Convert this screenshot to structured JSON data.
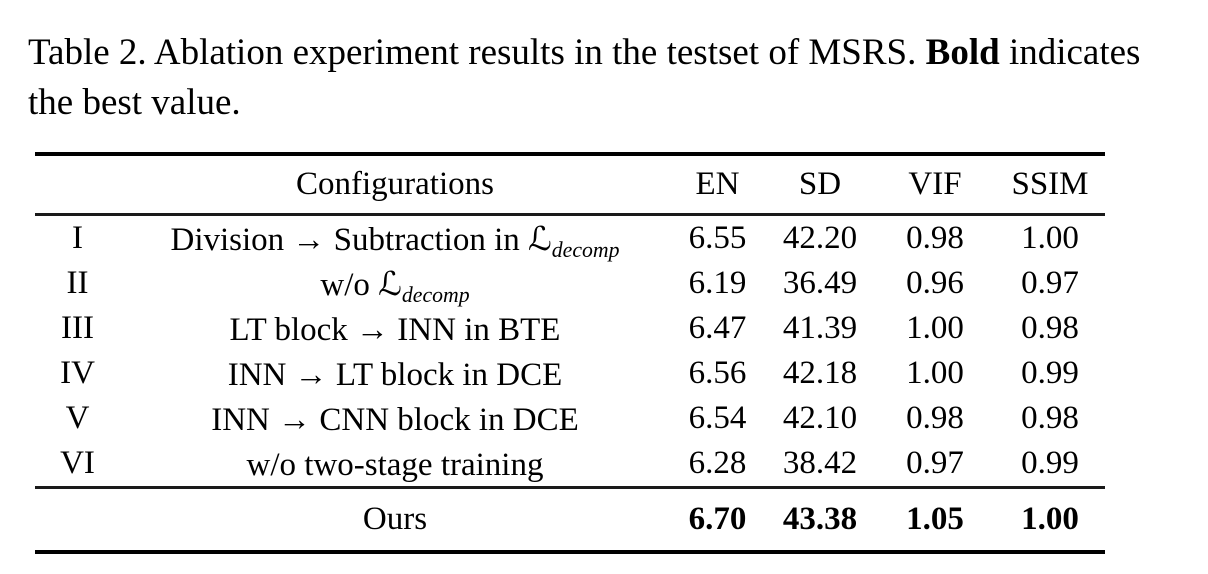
{
  "caption": {
    "line1_prefix": "Table 2. Ablation experiment results in the testset of MSRS. ",
    "line1_bold": "Bold",
    "line2": "indicates the best value."
  },
  "table": {
    "headers": {
      "config": "Configurations",
      "en": "EN",
      "sd": "SD",
      "vif": "VIF",
      "ssim": "SSIM"
    },
    "rows": [
      {
        "id": "I",
        "config_pre": "Division → Subtraction in ",
        "math_symbol": "ℒ",
        "math_sub": "decomp",
        "en": "6.55",
        "sd": "42.20",
        "vif": "0.98",
        "ssim": "1.00"
      },
      {
        "id": "II",
        "config_pre": "w/o ",
        "math_symbol": "ℒ",
        "math_sub": "decomp",
        "en": "6.19",
        "sd": "36.49",
        "vif": "0.96",
        "ssim": "0.97"
      },
      {
        "id": "III",
        "config_pre": "LT block → INN in BTE",
        "math_symbol": "",
        "math_sub": "",
        "en": "6.47",
        "sd": "41.39",
        "vif": "1.00",
        "ssim": "0.98"
      },
      {
        "id": "IV",
        "config_pre": "INN → LT block in DCE",
        "math_symbol": "",
        "math_sub": "",
        "en": "6.56",
        "sd": "42.18",
        "vif": "1.00",
        "ssim": "0.99"
      },
      {
        "id": "V",
        "config_pre": "INN → CNN block in DCE",
        "math_symbol": "",
        "math_sub": "",
        "en": "6.54",
        "sd": "42.10",
        "vif": "0.98",
        "ssim": "0.98"
      },
      {
        "id": "VI",
        "config_pre": "w/o two-stage training",
        "math_symbol": "",
        "math_sub": "",
        "en": "6.28",
        "sd": "38.42",
        "vif": "0.97",
        "ssim": "0.99"
      }
    ],
    "summary_row": {
      "label": "Ours",
      "en": "6.70",
      "sd": "43.38",
      "vif": "1.05",
      "ssim": "1.00"
    }
  },
  "colors": {
    "background": "#ffffff",
    "text": "#000000",
    "rule": "#000000"
  }
}
